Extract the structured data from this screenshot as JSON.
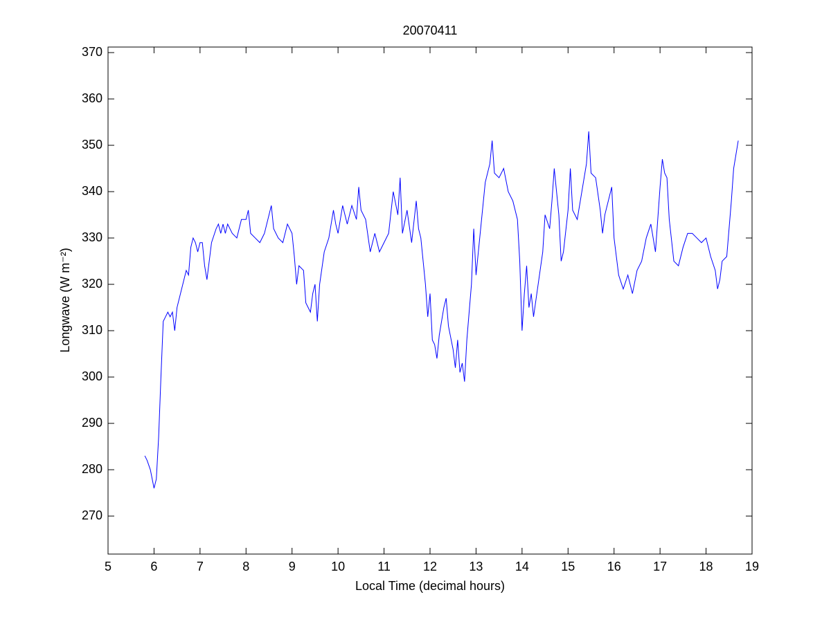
{
  "chart_data": {
    "type": "line",
    "title": "20070411",
    "xlabel": "Local Time (decimal hours)",
    "ylabel": "Longwave (W m⁻²)",
    "color": "#0000ff",
    "xlim": [
      5,
      19
    ],
    "xticks": [
      5,
      6,
      7,
      8,
      9,
      10,
      11,
      12,
      13,
      14,
      15,
      16,
      17,
      18,
      19
    ],
    "ylim": [
      261.8,
      371.2
    ],
    "yticks": [
      270,
      280,
      290,
      300,
      310,
      320,
      330,
      340,
      350,
      360,
      370
    ],
    "x": [
      5.8,
      5.85,
      5.92,
      6.0,
      6.05,
      6.1,
      6.15,
      6.2,
      6.25,
      6.3,
      6.35,
      6.4,
      6.45,
      6.5,
      6.55,
      6.65,
      6.7,
      6.75,
      6.8,
      6.85,
      6.9,
      6.95,
      7.0,
      7.05,
      7.1,
      7.15,
      7.25,
      7.35,
      7.4,
      7.45,
      7.5,
      7.55,
      7.6,
      7.7,
      7.8,
      7.9,
      8.0,
      8.05,
      8.1,
      8.2,
      8.3,
      8.4,
      8.5,
      8.55,
      8.6,
      8.7,
      8.8,
      8.9,
      9.0,
      9.05,
      9.1,
      9.15,
      9.25,
      9.3,
      9.4,
      9.45,
      9.5,
      9.55,
      9.6,
      9.7,
      9.8,
      9.9,
      9.95,
      10.0,
      10.1,
      10.2,
      10.3,
      10.4,
      10.45,
      10.5,
      10.6,
      10.7,
      10.8,
      10.9,
      11.0,
      11.1,
      11.2,
      11.3,
      11.35,
      11.4,
      11.5,
      11.6,
      11.7,
      11.75,
      11.8,
      11.9,
      11.95,
      12.0,
      12.05,
      12.1,
      12.15,
      12.2,
      12.3,
      12.35,
      12.4,
      12.5,
      12.55,
      12.6,
      12.65,
      12.7,
      12.75,
      12.8,
      12.9,
      12.95,
      13.0,
      13.1,
      13.2,
      13.3,
      13.35,
      13.4,
      13.5,
      13.6,
      13.7,
      13.8,
      13.9,
      13.95,
      14.0,
      14.05,
      14.1,
      14.15,
      14.2,
      14.25,
      14.35,
      14.45,
      14.5,
      14.6,
      14.65,
      14.7,
      14.8,
      14.85,
      14.9,
      15.0,
      15.05,
      15.1,
      15.2,
      15.3,
      15.4,
      15.45,
      15.5,
      15.6,
      15.7,
      15.75,
      15.8,
      15.9,
      15.95,
      16.0,
      16.1,
      16.2,
      16.3,
      16.4,
      16.5,
      16.6,
      16.7,
      16.8,
      16.9,
      17.0,
      17.05,
      17.1,
      17.15,
      17.2,
      17.3,
      17.4,
      17.5,
      17.6,
      17.7,
      17.8,
      17.9,
      18.0,
      18.1,
      18.2,
      18.25,
      18.3,
      18.35,
      18.45,
      18.5,
      18.55,
      18.6,
      18.7
    ],
    "values": [
      283,
      282,
      280,
      276,
      278,
      287,
      300,
      312,
      313,
      314,
      313,
      314,
      310,
      315,
      317,
      321,
      323,
      322,
      328,
      330,
      329,
      327,
      329,
      329,
      324,
      321,
      329,
      332,
      333,
      331,
      333,
      331,
      333,
      331,
      330,
      334,
      334,
      336,
      331,
      330,
      329,
      331,
      335,
      337,
      332,
      330,
      329,
      333,
      331,
      326,
      320,
      324,
      323,
      316,
      314,
      318,
      320,
      312,
      320,
      327,
      330,
      336,
      333,
      331,
      337,
      333,
      337,
      334,
      341,
      336,
      334,
      327,
      331,
      327,
      329,
      331,
      340,
      335,
      343,
      331,
      336,
      329,
      338,
      332,
      330,
      320,
      313,
      318,
      308,
      307,
      304,
      309,
      315,
      317,
      311,
      306,
      302,
      308,
      301,
      303,
      299,
      308,
      320,
      332,
      322,
      332,
      342,
      346,
      351,
      344,
      343,
      345,
      340,
      338,
      334,
      325,
      310,
      318,
      324,
      315,
      318,
      313,
      320,
      327,
      335,
      332,
      338,
      345,
      335,
      325,
      327,
      336,
      345,
      336,
      334,
      340,
      346,
      353,
      344,
      343,
      336,
      331,
      335,
      339,
      341,
      330,
      322,
      319,
      322,
      318,
      323,
      325,
      330,
      333,
      327,
      341,
      347,
      344,
      343,
      334,
      325,
      324,
      328,
      331,
      331,
      330,
      329,
      330,
      326,
      323,
      319,
      321,
      325,
      326,
      332,
      338,
      345,
      351
    ]
  }
}
